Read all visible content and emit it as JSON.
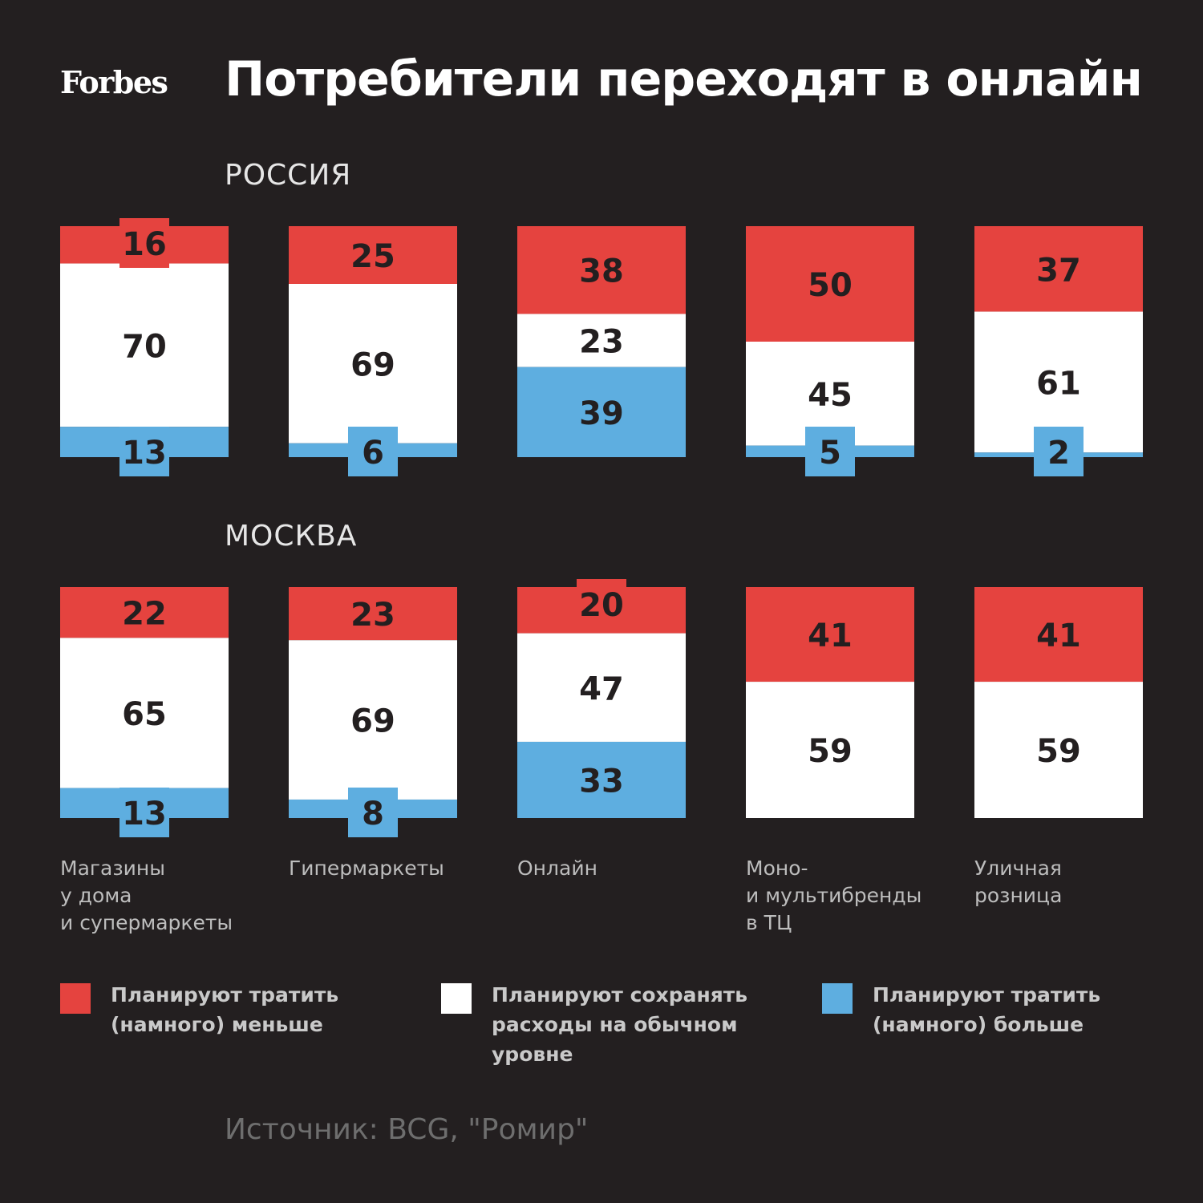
{
  "logo": "Forbes",
  "title": "Потребители переходят в онлайн",
  "colors": {
    "background": "#231f20",
    "less": "#e5433f",
    "same": "#ffffff",
    "more": "#5eaee0",
    "value_text": "#231f20"
  },
  "categories": [
    "Магазины\nу дома\nи супермаркеты",
    "Гипермаркеты",
    "Онлайн",
    "Моно-\nи мультибренды\nв ТЦ",
    "Уличная\nрозница"
  ],
  "chart_data": [
    {
      "type": "bar",
      "stacked": true,
      "title": "РОССИЯ",
      "categories": [
        "Магазины у дома и супермаркеты",
        "Гипермаркеты",
        "Онлайн",
        "Моно- и мультибренды в ТЦ",
        "Уличная розница"
      ],
      "series": [
        {
          "name": "Планируют тратить (намного) меньше",
          "color": "#e5433f",
          "values": [
            16,
            25,
            38,
            50,
            37
          ]
        },
        {
          "name": "Планируют сохранять расходы на обычном уровне",
          "color": "#ffffff",
          "values": [
            70,
            69,
            23,
            45,
            61
          ]
        },
        {
          "name": "Планируют тратить (намного) больше",
          "color": "#5eaee0",
          "values": [
            13,
            6,
            39,
            5,
            2
          ]
        }
      ],
      "unit": "%"
    },
    {
      "type": "bar",
      "stacked": true,
      "title": "МОСКВА",
      "categories": [
        "Магазины у дома и супермаркеты",
        "Гипермаркеты",
        "Онлайн",
        "Моно- и мультибренды в ТЦ",
        "Уличная розница"
      ],
      "series": [
        {
          "name": "Планируют тратить (намного) меньше",
          "color": "#e5433f",
          "values": [
            22,
            23,
            20,
            41,
            41
          ]
        },
        {
          "name": "Планируют сохранять расходы на обычном уровне",
          "color": "#ffffff",
          "values": [
            65,
            69,
            47,
            59,
            59
          ]
        },
        {
          "name": "Планируют тратить (намного) больше",
          "color": "#5eaee0",
          "values": [
            13,
            8,
            33,
            0,
            0
          ]
        }
      ],
      "unit": "%"
    }
  ],
  "legend": [
    {
      "label": "Планируют тратить\n(намного) меньше",
      "color": "#e5433f"
    },
    {
      "label": "Планируют сохранять\nрасходы на обычном\nуровне",
      "color": "#ffffff"
    },
    {
      "label": "Планируют тратить\n(намного) больше",
      "color": "#5eaee0"
    }
  ],
  "source": "Источник: BCG, \"Ромир\""
}
